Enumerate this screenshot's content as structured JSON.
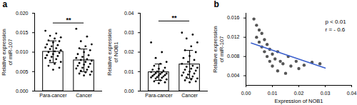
{
  "chart_data": [
    {
      "type": "bar",
      "title": "a",
      "categories": [
        "Para-cancer",
        "Cancer"
      ],
      "values": [
        0.0101,
        0.0079
      ],
      "errors": [
        0.0028,
        0.0029
      ],
      "points": [
        [
          0.0155,
          0.0148,
          0.0142,
          0.0138,
          0.0135,
          0.013,
          0.0128,
          0.0125,
          0.012,
          0.0118,
          0.0115,
          0.0112,
          0.011,
          0.0108,
          0.0105,
          0.0102,
          0.01,
          0.0098,
          0.0095,
          0.0092,
          0.009,
          0.0088,
          0.0085,
          0.0082,
          0.0078,
          0.0075,
          0.007,
          0.0065,
          0.006,
          0.0055
        ],
        [
          0.016,
          0.014,
          0.0128,
          0.012,
          0.0115,
          0.011,
          0.0105,
          0.01,
          0.0095,
          0.0092,
          0.0088,
          0.0085,
          0.0082,
          0.008,
          0.0078,
          0.0075,
          0.0072,
          0.007,
          0.0068,
          0.0065,
          0.0062,
          0.006,
          0.0058,
          0.0055,
          0.0052,
          0.005,
          0.0048,
          0.0045,
          0.0042,
          0.004
        ]
      ],
      "ylabel": "Relative expression\nof miR-107",
      "ylim": [
        0,
        0.02
      ],
      "yticks": [
        {
          "value": 0,
          "label": "0.000"
        },
        {
          "value": 0.005,
          "label": "0.005"
        },
        {
          "value": 0.01,
          "label": "0.010"
        },
        {
          "value": 0.015,
          "label": "0.015"
        },
        {
          "value": 0.02,
          "label": "0.020"
        }
      ],
      "annotations": [
        {
          "text": "**",
          "from": "Para-cancer",
          "to": "Cancer",
          "y": 0.0175
        }
      ],
      "color": "#ffffff",
      "grid": false
    },
    {
      "type": "bar",
      "categories": [
        "Para-cancer",
        "Cancer"
      ],
      "values": [
        0.0097,
        0.0137
      ],
      "errors": [
        0.0042,
        0.0072
      ],
      "points": [
        [
          0.025,
          0.02,
          0.017,
          0.015,
          0.014,
          0.013,
          0.012,
          0.0115,
          0.011,
          0.0105,
          0.01,
          0.0098,
          0.0095,
          0.0092,
          0.009,
          0.0088,
          0.0085,
          0.0082,
          0.008,
          0.0078,
          0.0075,
          0.0072,
          0.007,
          0.0068,
          0.0065,
          0.006,
          0.0055,
          0.005,
          0.0045,
          0.004
        ],
        [
          0.03,
          0.029,
          0.027,
          0.025,
          0.023,
          0.021,
          0.02,
          0.018,
          0.017,
          0.016,
          0.015,
          0.014,
          0.013,
          0.0125,
          0.012,
          0.0115,
          0.011,
          0.0105,
          0.01,
          0.0095,
          0.009,
          0.0085,
          0.008,
          0.0075,
          0.007,
          0.0065,
          0.006,
          0.0055,
          0.005,
          0.0045
        ]
      ],
      "ylabel": "Relative expression\nof NOB1",
      "ylim": [
        0,
        0.04
      ],
      "yticks": [
        {
          "value": 0,
          "label": "0.00"
        },
        {
          "value": 0.01,
          "label": "0.01"
        },
        {
          "value": 0.02,
          "label": "0.02"
        },
        {
          "value": 0.03,
          "label": "0.03"
        },
        {
          "value": 0.04,
          "label": "0.04"
        }
      ],
      "annotations": [
        {
          "text": "**",
          "from": "Para-cancer",
          "to": "Cancer",
          "y": 0.036
        }
      ],
      "color": "#ffffff",
      "grid": false
    },
    {
      "type": "scatter",
      "title": "b",
      "x": [
        0.003,
        0.004,
        0.004,
        0.005,
        0.005,
        0.006,
        0.006,
        0.007,
        0.007,
        0.008,
        0.008,
        0.009,
        0.009,
        0.01,
        0.01,
        0.011,
        0.012,
        0.012,
        0.013,
        0.014,
        0.015,
        0.016,
        0.017,
        0.019,
        0.02,
        0.022,
        0.025,
        0.028
      ],
      "values": [
        0.0158,
        0.0145,
        0.012,
        0.0135,
        0.011,
        0.0128,
        0.01,
        0.0115,
        0.009,
        0.0105,
        0.008,
        0.0095,
        0.007,
        0.0085,
        0.006,
        0.0075,
        0.009,
        0.005,
        0.007,
        0.0065,
        0.0045,
        0.008,
        0.006,
        0.007,
        0.0055,
        0.0062,
        0.0068,
        0.0065
      ],
      "fit_line": {
        "x": [
          0.002,
          0.03
        ],
        "y": [
          0.0108,
          0.0056
        ],
        "color": "#3a5fcd"
      },
      "xlabel": "Expression of NOB1",
      "ylabel": "Relative expression\nof miR-107",
      "xlim": [
        0,
        0.04
      ],
      "xticks": [
        {
          "value": 0,
          "label": "0.00"
        },
        {
          "value": 0.01,
          "label": "0.01"
        },
        {
          "value": 0.02,
          "label": "0.02"
        },
        {
          "value": 0.03,
          "label": "0.03"
        },
        {
          "value": 0.04,
          "label": "0.04"
        }
      ],
      "ylim": [
        0.002,
        0.017
      ],
      "yticks": [
        {
          "value": 0.004,
          "label": "0.004"
        },
        {
          "value": 0.008,
          "label": "0.008"
        },
        {
          "value": 0.012,
          "label": "0.012"
        },
        {
          "value": 0.016,
          "label": "0.016"
        }
      ],
      "annotations": [
        {
          "text": "p < 0.01",
          "x": 0.03,
          "y": 0.0152
        },
        {
          "text": "r = - 0.6",
          "x": 0.03,
          "y": 0.0136
        }
      ],
      "color": "#555555",
      "grid": false
    }
  ]
}
